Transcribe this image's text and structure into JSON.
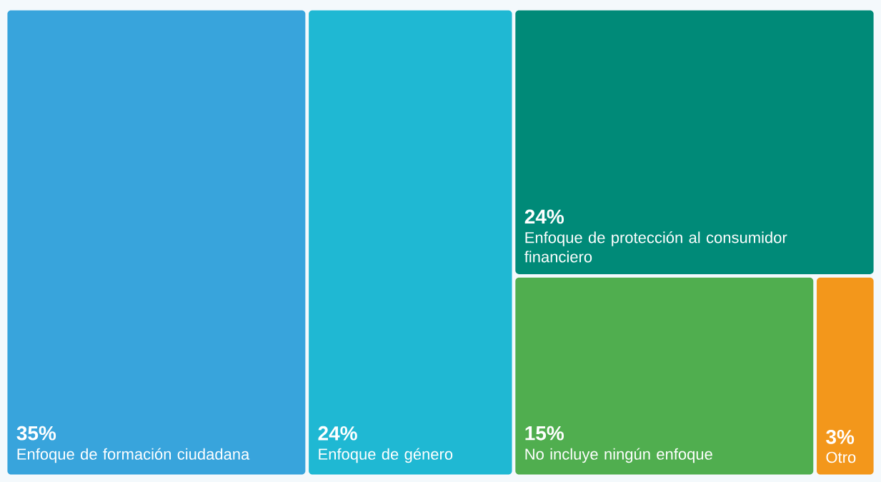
{
  "chart_data": {
    "type": "other",
    "categories": [
      "Enfoque de formación ciudadana",
      "Enfoque de género",
      "Enfoque de protección al consumidor financiero",
      "No incluye ningún enfoque",
      "Otro"
    ],
    "values": [
      35,
      24,
      24,
      15,
      3
    ],
    "value_labels": [
      "35%",
      "24%",
      "24%",
      "15%",
      "3%"
    ],
    "colors": [
      "#38a4dc",
      "#1fb8d3",
      "#008a78",
      "#50ae4f",
      "#f3971b"
    ]
  }
}
